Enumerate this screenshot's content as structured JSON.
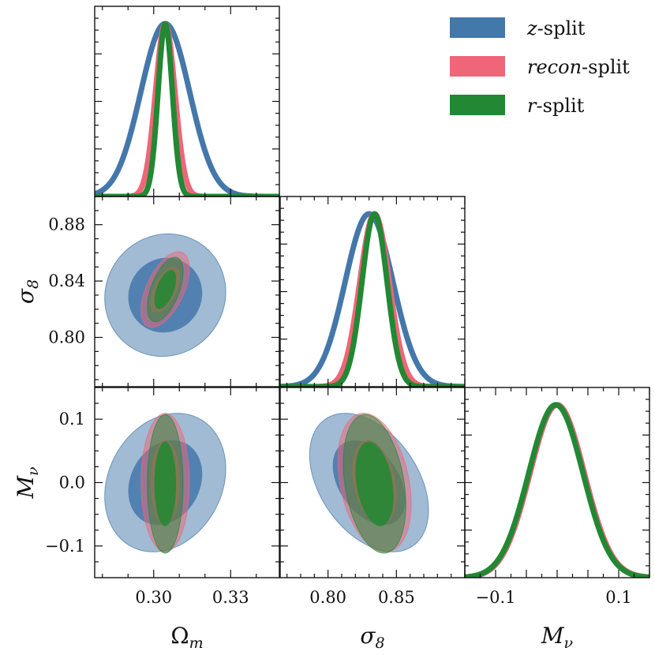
{
  "chart_data": {
    "type": "corner-plot",
    "parameters": [
      {
        "key": "omega_m",
        "label": "Ωm",
        "label_main": "Ω",
        "label_sub": "m",
        "range": [
          0.277,
          0.349
        ],
        "ticks": [
          0.3,
          0.33
        ],
        "tick_labels": [
          "0.30",
          "0.33"
        ]
      },
      {
        "key": "sigma_8",
        "label": "σ8",
        "label_main": "σ",
        "label_sub": "8",
        "range": [
          0.765,
          0.9
        ],
        "ticks": [
          0.8,
          0.84,
          0.88
        ],
        "tick_labels": [
          "0.80",
          "0.84",
          "0.88"
        ],
        "x_ticks": [
          0.8,
          0.85
        ],
        "x_tick_labels": [
          "0.80",
          "0.85"
        ]
      },
      {
        "key": "m_nu",
        "label": "Mν",
        "label_main": "M",
        "label_sub": "ν",
        "range": [
          -0.15,
          0.15
        ],
        "ticks": [
          -0.1,
          0.0,
          0.1
        ],
        "tick_labels": [
          "−0.1",
          "0.0",
          "0.1"
        ],
        "x_ticks": [
          -0.1,
          0.1
        ],
        "x_tick_labels": [
          "−0.1",
          "0.1"
        ]
      }
    ],
    "series": [
      {
        "name": "z-split",
        "label_italic": "z",
        "label_rest": "-split",
        "color": "#4477aa",
        "mean": {
          "omega_m": 0.3045,
          "sigma_8": 0.83,
          "m_nu": 0.0
        },
        "sigma": {
          "omega_m": 0.0095,
          "sigma_8": 0.0175,
          "m_nu": 0.044
        },
        "corr": {
          "omega_m|sigma_8": 0.05,
          "omega_m|m_nu": 0.2,
          "sigma_8|m_nu": -0.4
        }
      },
      {
        "name": "recon-split",
        "label_italic": "recon",
        "label_rest": "-split",
        "color": "#ee6677",
        "mean": {
          "omega_m": 0.3045,
          "sigma_8": 0.834,
          "m_nu": 0.0
        },
        "sigma": {
          "omega_m": 0.0038,
          "sigma_8": 0.0108,
          "m_nu": 0.044
        },
        "corr": {
          "omega_m|sigma_8": 0.55,
          "omega_m|m_nu": 0.0,
          "sigma_8|m_nu": -0.3
        }
      },
      {
        "name": "r-split",
        "label_italic": "r",
        "label_rest": "-split",
        "color": "#228833",
        "mean": {
          "omega_m": 0.3045,
          "sigma_8": 0.834,
          "m_nu": -0.002
        },
        "sigma": {
          "omega_m": 0.0028,
          "sigma_8": 0.0092,
          "m_nu": 0.044
        },
        "corr": {
          "omega_m|sigma_8": 0.55,
          "omega_m|m_nu": 0.0,
          "sigma_8|m_nu": -0.3
        }
      }
    ],
    "legend_placement": "top-right"
  }
}
